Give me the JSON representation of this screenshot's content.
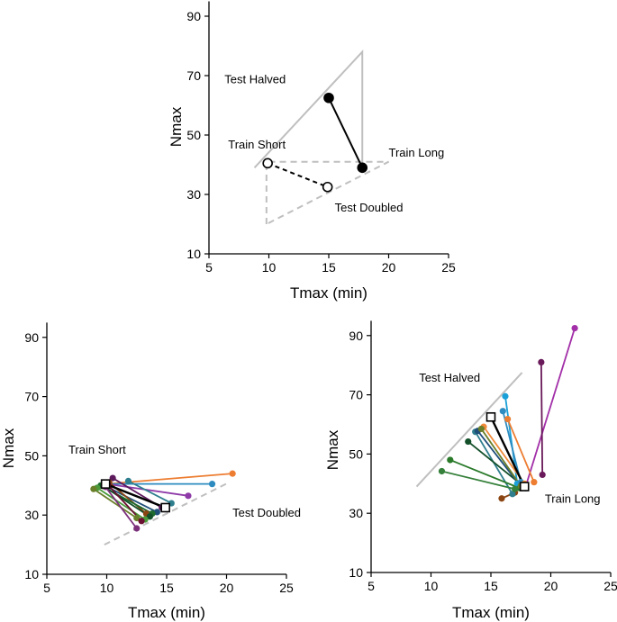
{
  "chart_data": [
    {
      "type": "scatter",
      "title": "",
      "xlabel": "Tmax (min)",
      "ylabel": "Nmax",
      "xlim": [
        5,
        25
      ],
      "ylim": [
        10,
        95
      ],
      "xticks": [
        5,
        10,
        15,
        20,
        25
      ],
      "yticks": [
        10,
        30,
        50,
        70,
        90
      ],
      "xtick_labels": [
        "5",
        "10",
        "15",
        "20",
        "25"
      ],
      "ytick_labels": [
        "10",
        "30",
        "50",
        "70",
        "90"
      ],
      "guide_lines": [
        {
          "name": "test-halved-triangle",
          "style": "solid",
          "color": "#bfbfbf",
          "points": [
            [
              8.8,
              39
            ],
            [
              17.8,
              78
            ],
            [
              17.8,
              39
            ]
          ]
        },
        {
          "name": "test-doubled-triangle",
          "style": "dashed",
          "color": "#bfbfbf",
          "points": [
            [
              9.8,
              20
            ],
            [
              9.8,
              41
            ],
            [
              20,
              41
            ],
            [
              9.8,
              20
            ]
          ]
        }
      ],
      "series": [
        {
          "name": "Train Long to Test Halved",
          "style": "solid",
          "color": "#000000",
          "fill": "#000000",
          "points": [
            [
              17.8,
              39
            ],
            [
              15.0,
              62.5
            ]
          ]
        },
        {
          "name": "Train Short to Test Doubled",
          "style": "dashed",
          "color": "#000000",
          "fill": "#ffffff",
          "points": [
            [
              9.9,
              40.5
            ],
            [
              14.9,
              32.5
            ]
          ]
        }
      ],
      "annotations": [
        {
          "text": "Test Halved",
          "x": 6.3,
          "y": 67.5
        },
        {
          "text": "Train Short",
          "x": 6.6,
          "y": 45.5
        },
        {
          "text": "Train Long",
          "x": 20.0,
          "y": 42.8
        },
        {
          "text": "Test Doubled",
          "x": 15.5,
          "y": 24.2
        }
      ]
    },
    {
      "type": "scatter",
      "title": "",
      "xlabel": "Tmax (min)",
      "ylabel": "Nmax",
      "xlim": [
        5,
        25
      ],
      "ylim": [
        10,
        95
      ],
      "xticks": [
        5,
        10,
        15,
        20,
        25
      ],
      "yticks": [
        10,
        30,
        50,
        70,
        90
      ],
      "xtick_labels": [
        "5",
        "10",
        "15",
        "20",
        "25"
      ],
      "ytick_labels": [
        "10",
        "30",
        "50",
        "70",
        "90"
      ],
      "guide_lines": [
        {
          "name": "doubled-guide",
          "style": "dashed",
          "color": "#bfbfbf",
          "points": [
            [
              9.8,
              20
            ],
            [
              20.2,
              41
            ]
          ]
        }
      ],
      "series": [
        {
          "name": "subject-orange",
          "color": "#ed7d31",
          "points": [
            [
              9.9,
              40.5
            ],
            [
              20.5,
              44
            ]
          ]
        },
        {
          "name": "subject-blue",
          "color": "#2e8bc0",
          "points": [
            [
              9.8,
              40.5
            ],
            [
              18.8,
              40.5
            ]
          ]
        },
        {
          "name": "subject-purple-a",
          "color": "#8e3aa8",
          "points": [
            [
              10.0,
              40.5
            ],
            [
              16.8,
              36.5
            ]
          ]
        },
        {
          "name": "subject-teal",
          "color": "#2e7e8e",
          "points": [
            [
              11.8,
              41.5
            ],
            [
              15.4,
              34.0
            ]
          ]
        },
        {
          "name": "subject-darkpurple",
          "color": "#5c1a5c",
          "points": [
            [
              10.5,
              42.5
            ],
            [
              14.6,
              32.5
            ]
          ]
        },
        {
          "name": "subject-navy",
          "color": "#1f4e79",
          "points": [
            [
              9.8,
              40
            ],
            [
              14.2,
              31.0
            ]
          ]
        },
        {
          "name": "subject-brown",
          "color": "#8b4513",
          "points": [
            [
              10.2,
              41.0
            ],
            [
              13.3,
              30.5
            ]
          ]
        },
        {
          "name": "subject-darkgreen-a",
          "color": "#1e6b2e",
          "points": [
            [
              9.5,
              40
            ],
            [
              13.8,
              30.5
            ]
          ]
        },
        {
          "name": "subject-darkgreen-b",
          "color": "#13502a",
          "points": [
            [
              9.7,
              39.8
            ],
            [
              13.6,
              29.5
            ]
          ]
        },
        {
          "name": "subject-green",
          "color": "#4a9a3a",
          "points": [
            [
              9.2,
              39.2
            ],
            [
              13.2,
              28.5
            ]
          ]
        },
        {
          "name": "subject-olive",
          "color": "#6a7f2a",
          "points": [
            [
              8.9,
              38.8
            ],
            [
              12.5,
              29.0
            ]
          ]
        },
        {
          "name": "subject-purple-b",
          "color": "#7b2f7b",
          "points": [
            [
              9.9,
              39.5
            ],
            [
              12.5,
              25.5
            ]
          ]
        },
        {
          "name": "subject-darkred",
          "color": "#6a1030",
          "points": [
            [
              10.1,
              40.2
            ],
            [
              12.9,
              28.0
            ]
          ]
        },
        {
          "name": "group-mean",
          "color": "#000000",
          "width": 2.4,
          "hollow": true,
          "points": [
            [
              9.9,
              40.5
            ],
            [
              14.9,
              32.5
            ]
          ]
        }
      ],
      "annotations": [
        {
          "text": "Train Short",
          "x": 6.8,
          "y": 50.8
        },
        {
          "text": "Test Doubled",
          "x": 20.5,
          "y": 29.5
        }
      ]
    },
    {
      "type": "scatter",
      "title": "",
      "xlabel": "Tmax (min)",
      "ylabel": "Nmax",
      "xlim": [
        5,
        25
      ],
      "ylim": [
        10,
        95
      ],
      "xticks": [
        5,
        10,
        15,
        20,
        25
      ],
      "yticks": [
        10,
        30,
        50,
        70,
        90
      ],
      "xtick_labels": [
        "5",
        "10",
        "15",
        "20",
        "25"
      ],
      "ytick_labels": [
        "10",
        "30",
        "50",
        "70",
        "90"
      ],
      "guide_lines": [
        {
          "name": "halved-guide",
          "style": "solid",
          "color": "#bfbfbf",
          "points": [
            [
              8.8,
              39
            ],
            [
              17.6,
              77.5
            ]
          ]
        }
      ],
      "series": [
        {
          "name": "subject-magenta",
          "color": "#a22fa8",
          "points": [
            [
              17.9,
              39
            ],
            [
              22,
              92.5
            ]
          ]
        },
        {
          "name": "subject-darkpurple",
          "color": "#6a1a5a",
          "points": [
            [
              19.3,
              43
            ],
            [
              19.2,
              81
            ]
          ]
        },
        {
          "name": "subject-lightblue",
          "color": "#1aa0d8",
          "points": [
            [
              17.2,
              40
            ],
            [
              16.2,
              69.5
            ]
          ]
        },
        {
          "name": "subject-orange",
          "color": "#ed7d31",
          "points": [
            [
              18.6,
              40.5
            ],
            [
              16.4,
              61.8
            ]
          ]
        },
        {
          "name": "subject-blue",
          "color": "#2e8bc0",
          "points": [
            [
              17.5,
              40.5
            ],
            [
              16.0,
              64.5
            ]
          ]
        },
        {
          "name": "subject-brown",
          "color": "#8b4513",
          "points": [
            [
              17.0,
              37
            ],
            [
              15.9,
              35.0
            ]
          ]
        },
        {
          "name": "subject-teal",
          "color": "#2e7e8e",
          "points": [
            [
              16.8,
              36.5
            ],
            [
              13.7,
              57.5
            ]
          ]
        },
        {
          "name": "subject-darkgreen-a",
          "color": "#13502a",
          "points": [
            [
              17.9,
              38.5
            ],
            [
              13.1,
              54.2
            ]
          ]
        },
        {
          "name": "subject-green",
          "color": "#2a7a2a",
          "points": [
            [
              17.4,
              38.5
            ],
            [
              11.6,
              48
            ]
          ]
        },
        {
          "name": "subject-green-b",
          "color": "#35803a",
          "points": [
            [
              17.0,
              38.2
            ],
            [
              10.9,
              44.2
            ]
          ]
        },
        {
          "name": "subject-orange-b",
          "color": "#f08a3a",
          "points": [
            [
              17.8,
              40
            ],
            [
              14.4,
              59.2
            ]
          ]
        },
        {
          "name": "subject-navy",
          "color": "#1f4e79",
          "points": [
            [
              17.6,
              38.5
            ],
            [
              13.9,
              57.8
            ]
          ]
        },
        {
          "name": "subject-olive",
          "color": "#6a7f2a",
          "points": [
            [
              17.5,
              39.2
            ],
            [
              14.2,
              58.5
            ]
          ]
        },
        {
          "name": "group-mean",
          "color": "#000000",
          "width": 2.4,
          "hollow": true,
          "points": [
            [
              17.8,
              39
            ],
            [
              15.0,
              62.5
            ]
          ]
        }
      ],
      "annotations": [
        {
          "text": "Test Halved",
          "x": 9.0,
          "y": 74.5
        },
        {
          "text": "Train Long",
          "x": 19.5,
          "y": 33.5
        }
      ]
    }
  ]
}
